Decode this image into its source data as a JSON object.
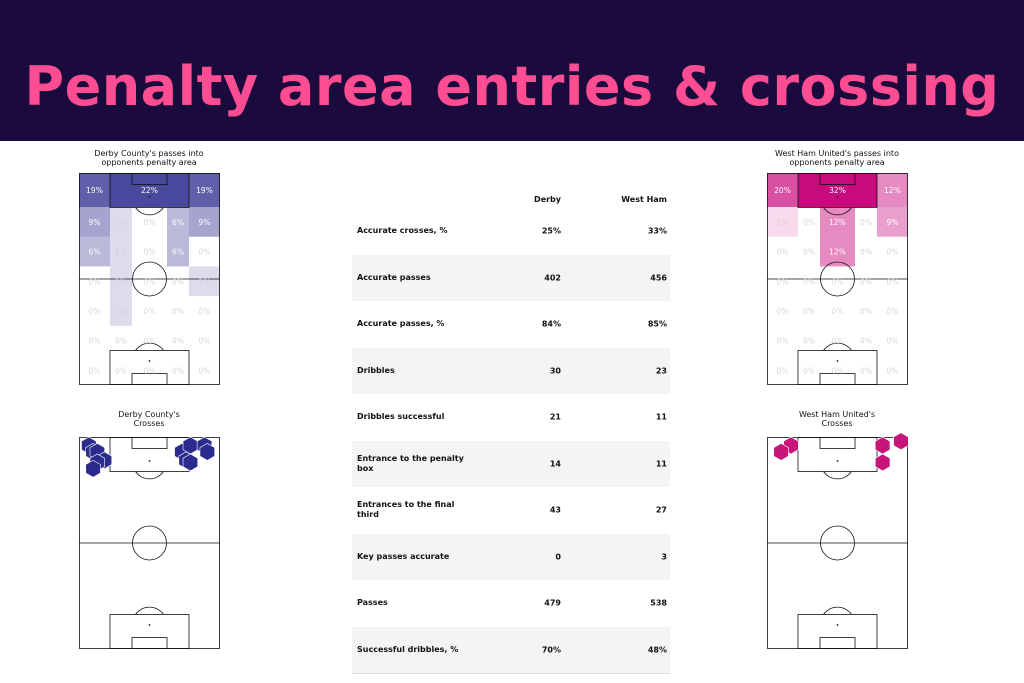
{
  "page": {
    "title": "Penalty area entries & crossing"
  },
  "colors": {
    "banner_bg": "#1b0a3c",
    "title": "#ff4d94",
    "derby": "#2a2a8c",
    "westham": "#c8157a"
  },
  "chart_data": [
    {
      "id": "derby-passes",
      "type": "heatmap",
      "title": "Derby County's passes into opponents penalty area",
      "title_lines": [
        "Derby County's passes into",
        "opponents penalty area"
      ],
      "team": "derby",
      "grid": [
        [
          "19%",
          "22%",
          "19%"
        ],
        [
          "9%",
          "1%",
          "0%",
          "6%",
          "9%"
        ],
        [
          "6%",
          "1%",
          "0%",
          "6%",
          "0%"
        ],
        [
          "0%",
          "1%",
          "0%",
          "0%",
          "1%"
        ],
        [
          "0%",
          "1%",
          "0%",
          "0%",
          "0%"
        ],
        [
          "0%",
          "0%",
          "0%",
          "0%",
          "0%"
        ],
        [
          "0%",
          "0%",
          "0%",
          "0%",
          "0%"
        ]
      ],
      "values": [
        [
          19,
          22,
          19
        ],
        [
          9,
          1,
          0,
          6,
          9
        ],
        [
          6,
          1,
          0,
          6,
          0
        ],
        [
          0,
          1,
          0,
          0,
          1
        ],
        [
          0,
          1,
          0,
          0,
          0
        ],
        [
          0,
          0,
          0,
          0,
          0
        ],
        [
          0,
          0,
          0,
          0,
          0
        ]
      ]
    },
    {
      "id": "westham-passes",
      "type": "heatmap",
      "title": "West Ham United's passes into opponents penalty area",
      "title_lines": [
        "West Ham United's passes into",
        "opponents penalty area"
      ],
      "team": "westham",
      "grid": [
        [
          "20%",
          "32%",
          "12%"
        ],
        [
          "1%",
          "0%",
          "12%",
          "0%",
          "9%"
        ],
        [
          "0%",
          "0%",
          "12%",
          "0%",
          "0%"
        ],
        [
          "0%",
          "0%",
          "0%",
          "0%",
          "0%"
        ],
        [
          "0%",
          "0%",
          "0%",
          "0%",
          "0%"
        ],
        [
          "0%",
          "0%",
          "0%",
          "0%",
          "0%"
        ],
        [
          "0%",
          "0%",
          "0%",
          "0%",
          "0%"
        ]
      ],
      "values": [
        [
          20,
          32,
          12
        ],
        [
          1,
          0,
          12,
          0,
          9
        ],
        [
          0,
          0,
          12,
          0,
          0
        ],
        [
          0,
          0,
          0,
          0,
          0
        ],
        [
          0,
          0,
          0,
          0,
          0
        ],
        [
          0,
          0,
          0,
          0,
          0
        ],
        [
          0,
          0,
          0,
          0,
          0
        ]
      ]
    },
    {
      "id": "derby-crosses",
      "type": "scatter",
      "title": "Derby County's Crosses",
      "title_lines": [
        "Derby County's",
        "Crosses"
      ],
      "team": "derby",
      "x": [
        7,
        10,
        13,
        18,
        13,
        10,
        73,
        79,
        89,
        91,
        76,
        79
      ],
      "y": [
        4,
        7,
        7,
        11,
        12,
        15,
        7,
        4,
        4,
        7,
        11,
        12
      ],
      "xlim": [
        0,
        100
      ],
      "ylim": [
        0,
        100
      ]
    },
    {
      "id": "westham-crosses",
      "type": "scatter",
      "title": "West Ham United's Crosses",
      "title_lines": [
        "West Ham United's",
        "Crosses"
      ],
      "team": "westham",
      "x": [
        17,
        10,
        82,
        95,
        82
      ],
      "y": [
        4,
        7,
        4,
        2,
        12
      ],
      "xlim": [
        0,
        100
      ],
      "ylim": [
        0,
        100
      ]
    },
    {
      "id": "stats-table",
      "type": "table",
      "columns": [
        "",
        "Derby",
        "West Ham"
      ],
      "rows": [
        {
          "label": "Accurate crosses, %",
          "derby": "25%",
          "westham": "33%"
        },
        {
          "label": "Accurate passes",
          "derby": "402",
          "westham": "456"
        },
        {
          "label": "Accurate passes, %",
          "derby": "84%",
          "westham": "85%"
        },
        {
          "label": "Dribbles",
          "derby": "30",
          "westham": "23"
        },
        {
          "label": "Dribbles successful",
          "derby": "21",
          "westham": "11"
        },
        {
          "label": "Entrance to the penalty box",
          "derby": "14",
          "westham": "11"
        },
        {
          "label": "Entrances to the final third",
          "derby": "43",
          "westham": "27"
        },
        {
          "label": "Key passes accurate",
          "derby": "0",
          "westham": "3"
        },
        {
          "label": "Passes",
          "derby": "479",
          "westham": "538"
        },
        {
          "label": "Successful dribbles, %",
          "derby": "70%",
          "westham": "48%"
        }
      ]
    }
  ]
}
